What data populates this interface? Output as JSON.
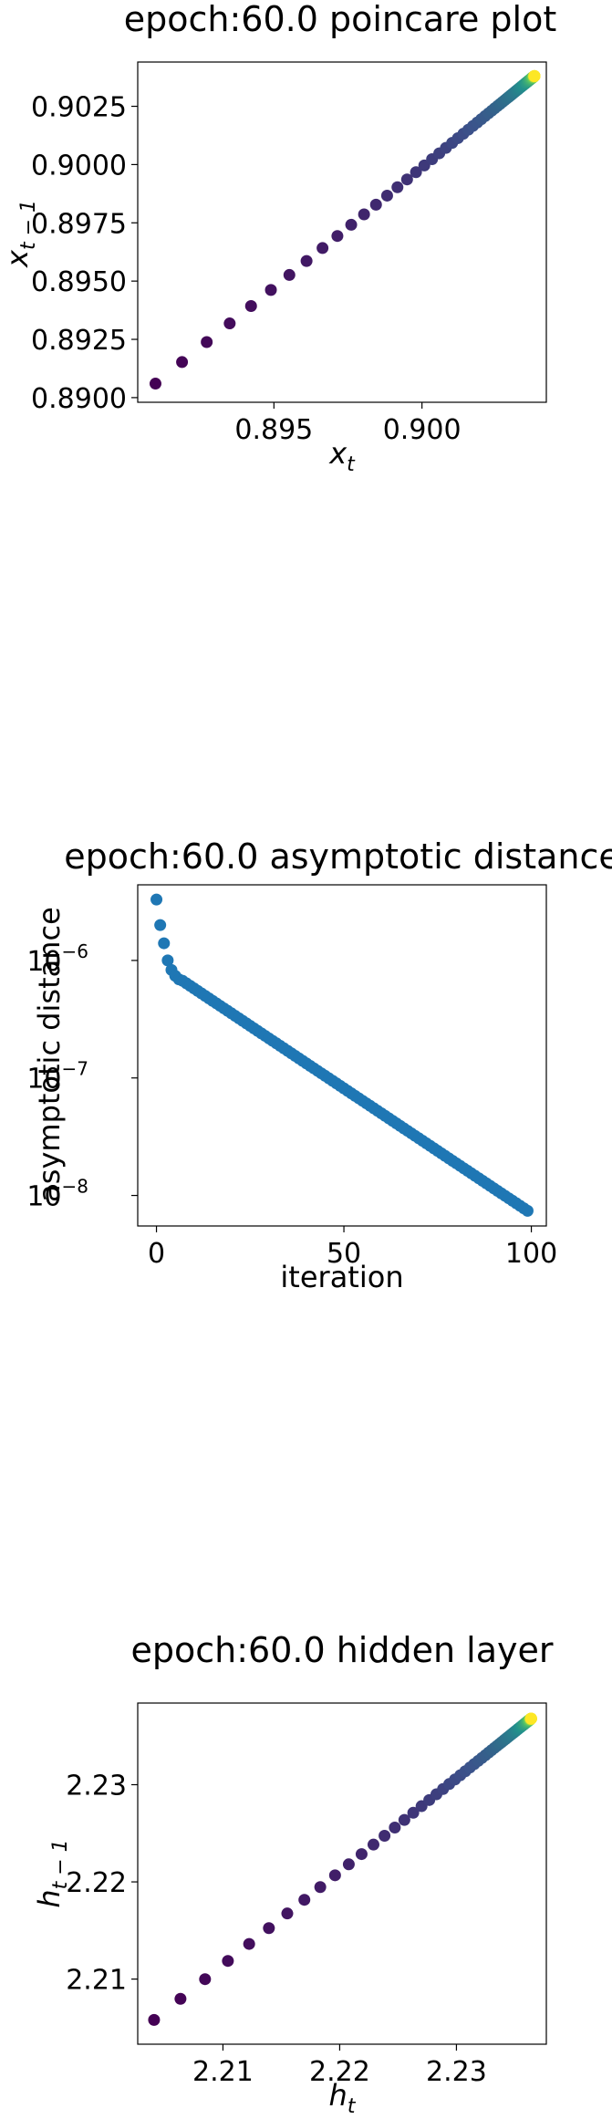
{
  "chart_data": [
    {
      "type": "scatter",
      "title": "epoch:60.0 poincare plot",
      "xlabel": "x",
      "xlabel_sub": "t",
      "ylabel": "x",
      "ylabel_sub": "t − 1",
      "xlim": [
        0.8904,
        0.9042
      ],
      "ylim": [
        0.8898,
        0.9044
      ],
      "xticks": [
        0.895,
        0.9
      ],
      "xtick_labels": [
        "0.895",
        "0.900"
      ],
      "yticks": [
        0.89,
        0.8925,
        0.895,
        0.8975,
        0.9,
        0.9025
      ],
      "ytick_labels": [
        "0.8900",
        "0.8925",
        "0.8950",
        "0.8975",
        "0.9000",
        "0.9025"
      ],
      "x_start": 0.891,
      "y_start": 0.8906,
      "x_end": 0.9038,
      "y_end": 0.9038,
      "n_points": 100,
      "spacing_decay": 0.93,
      "colormap": "viridis",
      "grid": false
    },
    {
      "type": "scatter",
      "title": "epoch:60.0 asymptotic distance",
      "xlabel": "iteration",
      "ylabel": "asymptotic distance",
      "yscale": "log",
      "xlim": [
        -5,
        104
      ],
      "ylim": [
        5.5e-09,
        4.4e-06
      ],
      "xticks": [
        0,
        50,
        100
      ],
      "xtick_labels": [
        "0",
        "50",
        "100"
      ],
      "yticks": [
        1e-06,
        1e-07,
        1e-08
      ],
      "ytick_labels": [
        "10",
        "10",
        "10"
      ],
      "ytick_exponents": [
        "−6",
        "−7",
        "−8"
      ],
      "x": [
        0,
        1,
        2,
        3,
        4,
        5,
        6
      ],
      "y": [
        3.3e-06,
        2e-06,
        1.4e-06,
        1e-06,
        8.3e-07,
        7.4e-07,
        6.9e-07
      ],
      "tail_start": [
        7,
        6.7e-07
      ],
      "tail_end": [
        99,
        7.4e-09
      ],
      "color": "#1f77b4",
      "grid": false
    },
    {
      "type": "scatter",
      "title": "epoch:60.0 hidden layer",
      "xlabel": "h",
      "xlabel_sub": "t",
      "ylabel": "h",
      "ylabel_sub": "t − 1",
      "xlim": [
        2.2027,
        2.2377
      ],
      "ylim": [
        2.2033,
        2.2384
      ],
      "xticks": [
        2.21,
        2.22,
        2.23
      ],
      "xtick_labels": [
        "2.21",
        "2.22",
        "2.23"
      ],
      "yticks": [
        2.21,
        2.22,
        2.23
      ],
      "ytick_labels": [
        "2.21",
        "2.22",
        "2.23"
      ],
      "x_start": 2.2041,
      "y_start": 2.2058,
      "x_end": 2.2364,
      "y_end": 2.2368,
      "n_points": 100,
      "spacing_decay": 0.93,
      "colormap": "viridis",
      "grid": false
    }
  ]
}
